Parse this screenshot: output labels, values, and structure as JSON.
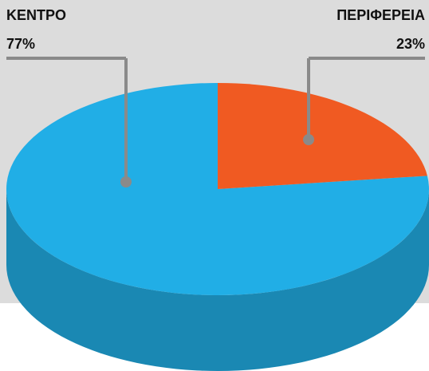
{
  "chart_data": {
    "type": "pie",
    "categories": [
      "ΚΕΝΤΡΟ",
      "ΠΕΡΙΦΕΡΕΙΑ"
    ],
    "values": [
      77,
      23
    ],
    "value_labels": [
      "77%",
      "23%"
    ],
    "colors": [
      "#21aee6",
      "#f05a22"
    ]
  }
}
